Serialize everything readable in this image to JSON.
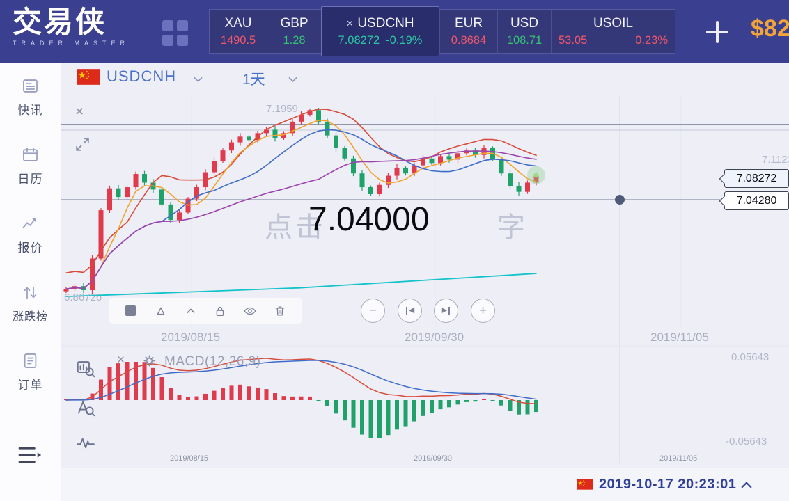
{
  "icons": {
    "close": "×",
    "minus": "−",
    "plus": "+",
    "skip_back": "◀",
    "skip_forward": "▶"
  },
  "header": {
    "logo_title": "交易侠",
    "logo_subtitle": "TRADER MASTER",
    "tickers": [
      {
        "symbol": "XAU",
        "value": "1490.5",
        "value_color": "red"
      },
      {
        "symbol": "GBP",
        "value": "1.28",
        "value_color": "green"
      },
      {
        "symbol": "USDCNH",
        "value": "7.08272",
        "change": "-0.19%",
        "value_color": "teal",
        "selected": true,
        "closable": true
      },
      {
        "symbol": "EUR",
        "value": "0.8684",
        "value_color": "red"
      },
      {
        "symbol": "USD",
        "value": "108.71",
        "value_color": "green"
      },
      {
        "symbol": "USOIL",
        "value": "53.05",
        "change": "0.23%",
        "value_color": "red"
      }
    ],
    "account_balance": "$82"
  },
  "sidebar": {
    "items": [
      {
        "key": "news",
        "label": "快讯"
      },
      {
        "key": "calendar",
        "label": "日历"
      },
      {
        "key": "quotes",
        "label": "报价"
      },
      {
        "key": "ranking",
        "label": "涨跌榜"
      },
      {
        "key": "orders",
        "label": "订单"
      }
    ]
  },
  "chart": {
    "symbol": "USDCNH",
    "timeframe": "1天",
    "high_label": "7.1959",
    "low_label": "6.86726",
    "right_label": "7.1123",
    "price_badge_current": "7.08272",
    "price_badge_level": "7.04280",
    "annotation": "7.04000",
    "watermark_left": "点击",
    "watermark_right": "字",
    "x_labels": [
      "2019/08/15",
      "2019/09/30",
      "2019/11/05"
    ]
  },
  "macd": {
    "title": "MACD(12,26,9)",
    "upper_label": "0.05643",
    "lower_label": "-0.05643",
    "x_labels": [
      "2019/08/15",
      "2019/09/30",
      "2019/11/05"
    ]
  },
  "statusbar": {
    "date_time": "2019-10-17 20:23:01"
  },
  "colors": {
    "header_bg": "#3b3f8f",
    "tab_selected_bg": "#292d6b",
    "up_red": "#e03b4d",
    "down_green": "#1ea269",
    "teal": "#2cc6a2",
    "gold": "#f2a43a",
    "link_blue": "#4a72c8",
    "timestamp_blue": "#2e3f96",
    "ma_fast_orange": "#f2a32e",
    "ma_envelope_red": "#d94b3a",
    "ma_mid_blue": "#3f6cc9",
    "ma_slow_purple": "#9c44ae",
    "ma_long_cyan": "#12c3c9"
  },
  "chart_data": {
    "type": "candlestick",
    "title": "USDCNH 1天",
    "visible_high": 7.1959,
    "visible_low": 6.86726,
    "right_tick": 7.1123,
    "current_price": 7.08272,
    "level_line": 7.0428,
    "x_ticks": [
      "2019/08/15",
      "2019/09/30",
      "2019/11/05"
    ],
    "closes": [
      6.885,
      6.89,
      6.883,
      6.938,
      7.022,
      7.06,
      7.045,
      7.062,
      7.085,
      7.07,
      7.058,
      7.032,
      7.005,
      7.018,
      7.042,
      7.062,
      7.088,
      7.108,
      7.126,
      7.14,
      7.15,
      7.144,
      7.156,
      7.162,
      7.148,
      7.156,
      7.176,
      7.188,
      7.196,
      7.176,
      7.152,
      7.13,
      7.112,
      7.086,
      7.062,
      7.05,
      7.066,
      7.082,
      7.096,
      7.086,
      7.1,
      7.112,
      7.104,
      7.116,
      7.11,
      7.121,
      7.126,
      7.118,
      7.13,
      7.11,
      7.086,
      7.064,
      7.054,
      7.07,
      7.083
    ],
    "overlays": [
      {
        "name": "ma-fast",
        "window": 5,
        "color": "#f2a32e"
      },
      {
        "name": "ma-envelope",
        "window": 8,
        "offset": 0.028,
        "color": "#d94b3a"
      },
      {
        "name": "ma-mid",
        "window": 12,
        "color": "#3f6cc9"
      },
      {
        "name": "ma-slow",
        "window": 30,
        "color": "#9c44ae"
      },
      {
        "name": "ma-long",
        "start": 6.872,
        "mid": 6.887,
        "end": 6.912,
        "color": "#12c3c9"
      }
    ],
    "indicator": {
      "type": "MACD",
      "params": [
        12,
        26,
        9
      ],
      "scale_high": 0.05643,
      "scale_low": -0.05643
    }
  }
}
